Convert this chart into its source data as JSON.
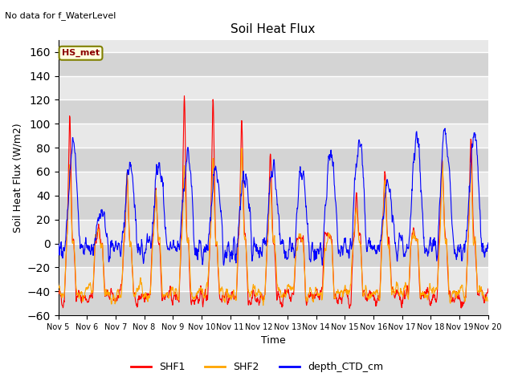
{
  "title": "Soil Heat Flux",
  "suptitle": "No data for f_WaterLevel",
  "xlabel": "Time",
  "ylabel": "Soil Heat Flux (W/m2)",
  "ylim": [
    -60,
    170
  ],
  "xlim": [
    0,
    360
  ],
  "yticks": [
    -60,
    -40,
    -20,
    0,
    20,
    40,
    60,
    80,
    100,
    120,
    140,
    160
  ],
  "xtick_labels": [
    "Nov 5",
    "Nov 6",
    "Nov 7",
    "Nov 8",
    "Nov 9",
    "Nov 10",
    "Nov 11",
    "Nov 12",
    "Nov 13",
    "Nov 14",
    "Nov 15",
    "Nov 16",
    "Nov 17",
    "Nov 18",
    "Nov 19",
    "Nov 20"
  ],
  "xtick_positions": [
    0,
    24,
    48,
    72,
    96,
    120,
    144,
    168,
    192,
    216,
    240,
    264,
    288,
    312,
    336,
    360
  ],
  "legend_labels": [
    "SHF1",
    "SHF2",
    "depth_CTD_cm"
  ],
  "shf1_color": "red",
  "shf2_color": "orange",
  "ctd_color": "blue",
  "annotation_text": "HS_met",
  "bg_color": "#ffffff",
  "plot_bg": "#e8e8e8",
  "alt_band_color": "#d0d0d0",
  "grid_color": "white",
  "seed": 42
}
